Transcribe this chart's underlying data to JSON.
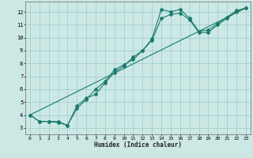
{
  "title": "",
  "xlabel": "Humidex (Indice chaleur)",
  "background_color": "#cce8e4",
  "grid_color": "#99cccc",
  "line_color": "#1a7a6e",
  "xlim": [
    -0.5,
    23.5
  ],
  "ylim": [
    2.5,
    12.8
  ],
  "xticks": [
    0,
    1,
    2,
    3,
    4,
    5,
    6,
    7,
    8,
    9,
    10,
    11,
    12,
    13,
    14,
    15,
    16,
    17,
    18,
    19,
    20,
    21,
    22,
    23
  ],
  "yticks": [
    3,
    4,
    5,
    6,
    7,
    8,
    9,
    10,
    11,
    12
  ],
  "line1_x": [
    0,
    1,
    2,
    3,
    4,
    5,
    6,
    7,
    8,
    9,
    10,
    11,
    12,
    13,
    14,
    15,
    16,
    17,
    18,
    19,
    20,
    21,
    22,
    23
  ],
  "line1_y": [
    4.0,
    3.5,
    3.5,
    3.5,
    3.2,
    4.7,
    5.3,
    5.6,
    6.5,
    7.3,
    7.8,
    8.5,
    9.0,
    9.9,
    12.2,
    12.0,
    12.2,
    11.5,
    10.5,
    10.6,
    11.1,
    11.6,
    12.1,
    12.3
  ],
  "line2_x": [
    0,
    1,
    2,
    3,
    4,
    5,
    6,
    7,
    8,
    9,
    10,
    11,
    12,
    13,
    14,
    15,
    16,
    17,
    18,
    19,
    20,
    21,
    22,
    23
  ],
  "line2_y": [
    4.0,
    3.5,
    3.5,
    3.4,
    3.2,
    4.5,
    5.2,
    6.0,
    6.6,
    7.5,
    7.9,
    8.3,
    9.0,
    9.8,
    11.5,
    11.8,
    11.9,
    11.4,
    10.4,
    10.4,
    11.0,
    11.5,
    12.0,
    12.3
  ],
  "line3_x": [
    0,
    23
  ],
  "line3_y": [
    4.0,
    12.3
  ]
}
